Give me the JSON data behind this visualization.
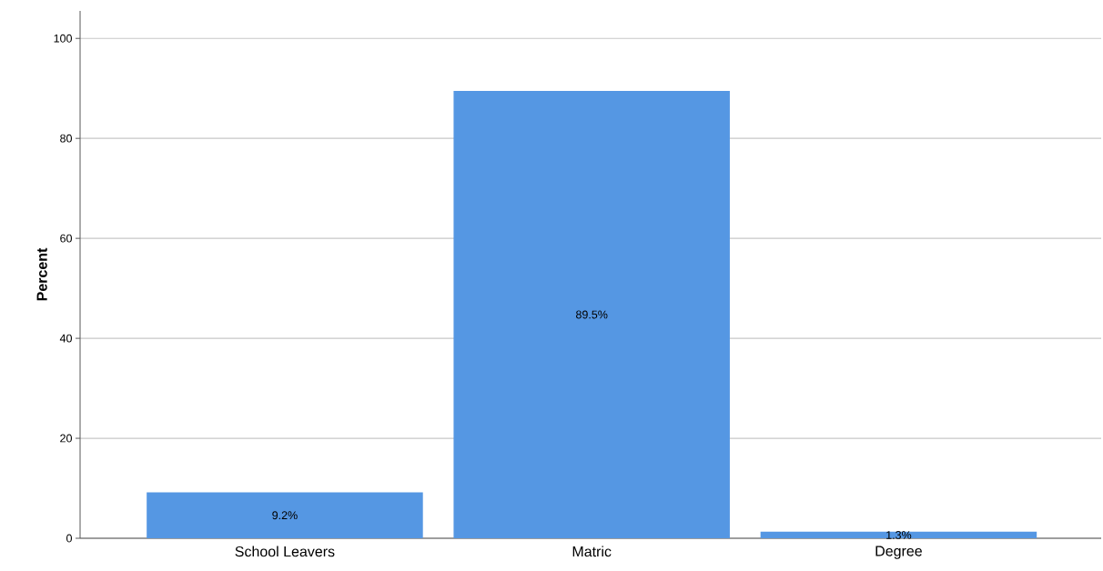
{
  "chart_data": {
    "type": "bar",
    "ylabel": "Percent",
    "categories": [
      "School Leavers",
      "Matric",
      "Degree"
    ],
    "values": [
      9.2,
      89.5,
      1.3
    ],
    "value_labels": [
      "9.2%",
      "89.5%",
      "1.3%"
    ],
    "color": "#5597e3",
    "ylim": [
      0,
      105.5
    ],
    "yticks": [
      0,
      20,
      40,
      60,
      80,
      100
    ],
    "grid": "y"
  }
}
